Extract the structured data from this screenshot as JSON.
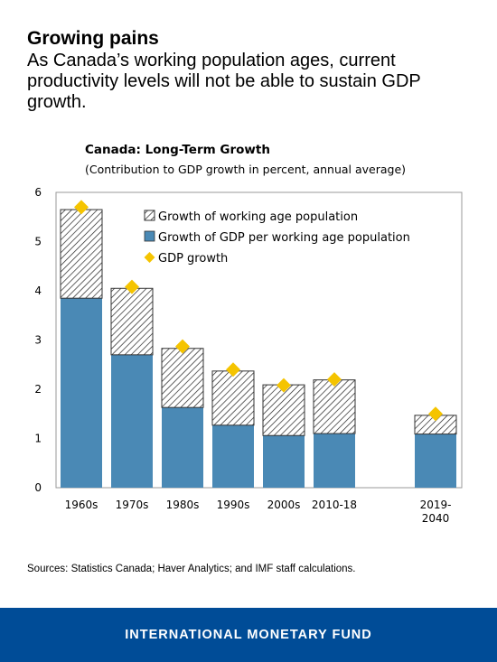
{
  "headline": "Growing pains",
  "subhead": "As Canada’s working population ages, current productivity levels will not be able to sustain GDP growth.",
  "sources": "Sources: Statistics Canada; Haver Analytics; and IMF staff calculations.",
  "footer": "INTERNATIONAL MONETARY FUND",
  "colors": {
    "gdp_per_worker": "#4a89b5",
    "diamond": "#f5c400",
    "footer_bg": "#004c97"
  },
  "chart_data": {
    "type": "bar",
    "stacked": true,
    "title": "Canada: Long-Term Growth",
    "subtitle": "(Contribution to GDP growth in percent, annual average)",
    "categories": [
      "1960s",
      "1970s",
      "1980s",
      "1990s",
      "2000s",
      "2010-18",
      "2019-\n2040"
    ],
    "ylim": [
      0,
      6
    ],
    "yticks": [
      "0",
      "1",
      "2",
      "3",
      "4",
      "5",
      "6"
    ],
    "grid": false,
    "legend_position": "top-right",
    "series": [
      {
        "name": "Growth of GDP per working age population",
        "kind": "bar",
        "values": [
          3.85,
          2.7,
          1.63,
          1.27,
          1.06,
          1.1,
          1.09
        ]
      },
      {
        "name": "Growth of working age population",
        "kind": "bar-hatched",
        "values": [
          1.8,
          1.35,
          1.2,
          1.1,
          1.03,
          1.09,
          0.38
        ]
      },
      {
        "name": "GDP growth",
        "kind": "marker",
        "values": [
          5.7,
          4.08,
          2.87,
          2.4,
          2.08,
          2.2,
          1.5
        ]
      }
    ]
  }
}
